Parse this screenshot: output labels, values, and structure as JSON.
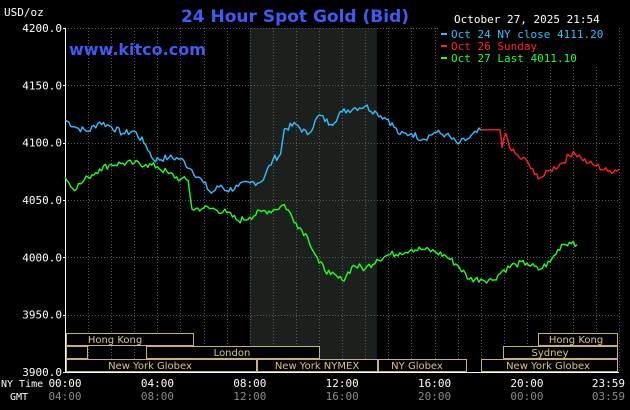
{
  "header": {
    "unit": "USD/oz",
    "title": "24 Hour Spot Gold (Bid)",
    "timestamp": "October 27, 2025 21:54",
    "watermark": "www.kitco.com"
  },
  "legend": [
    {
      "label": "Oct 24 NY close 4111.20",
      "color": "#2fbfff"
    },
    {
      "label": "Oct 26 Sunday",
      "color": "#ff2020"
    },
    {
      "label": "Oct 27 Last 4011.10",
      "color": "#20ff20"
    }
  ],
  "axis": {
    "y_ticks": [
      "4200.0",
      "4150.0",
      "4100.0",
      "4050.0",
      "4000.0",
      "3950.0",
      "3900.0"
    ],
    "x_row1_label": "NY Time",
    "x_row1": [
      "00:00",
      "04:00",
      "08:00",
      "12:00",
      "16:00",
      "20:00",
      "23:59"
    ],
    "x_row2_label": "GMT",
    "x_row2": [
      "04:00",
      "08:00",
      "12:00",
      "16:00",
      "20:00",
      "00:00",
      "03:59"
    ]
  },
  "sessions": {
    "hong_kong_1": "Hong Kong",
    "london": "London",
    "ny_globex_1": "New York Globex",
    "ny_nymex": "New York NYMEX",
    "ny_globex_2": "NY Globex",
    "hong_kong_2": "Hong Kong",
    "sydney": "Sydney",
    "ny_globex_3": "New York Globex"
  },
  "chart_data": {
    "type": "line",
    "title": "24 Hour Spot Gold (Bid)",
    "ylabel": "USD/oz",
    "xlabel": "NY Time",
    "ylim": [
      3900,
      4200
    ],
    "xlim": [
      "00:00",
      "23:59"
    ],
    "grid": true,
    "legend_position": "top-right",
    "series": [
      {
        "name": "Oct 24 NY close 4111.20",
        "color": "#2fbfff",
        "points": [
          [
            "00:00",
            4120
          ],
          [
            "00:30",
            4113
          ],
          [
            "01:00",
            4110
          ],
          [
            "01:30",
            4118
          ],
          [
            "02:00",
            4114
          ],
          [
            "02:30",
            4108
          ],
          [
            "03:00",
            4110
          ],
          [
            "03:30",
            4098
          ],
          [
            "03:50",
            4085
          ],
          [
            "04:30",
            4087
          ],
          [
            "05:00",
            4086
          ],
          [
            "05:30",
            4076
          ],
          [
            "06:00",
            4065
          ],
          [
            "06:20",
            4056
          ],
          [
            "06:45",
            4063
          ],
          [
            "07:00",
            4058
          ],
          [
            "07:30",
            4062
          ],
          [
            "08:00",
            4065
          ],
          [
            "08:30",
            4066
          ],
          [
            "09:00",
            4085
          ],
          [
            "09:20",
            4090
          ],
          [
            "09:30",
            4112
          ],
          [
            "10:00",
            4116
          ],
          [
            "10:30",
            4107
          ],
          [
            "11:00",
            4124
          ],
          [
            "11:30",
            4116
          ],
          [
            "12:00",
            4127
          ],
          [
            "12:30",
            4130
          ],
          [
            "13:00",
            4132
          ],
          [
            "13:30",
            4126
          ],
          [
            "14:00",
            4120
          ],
          [
            "14:30",
            4107
          ],
          [
            "15:00",
            4108
          ],
          [
            "15:30",
            4103
          ],
          [
            "16:00",
            4109
          ],
          [
            "16:30",
            4107
          ],
          [
            "17:00",
            4099
          ],
          [
            "17:30",
            4104
          ],
          [
            "18:00",
            4111
          ]
        ]
      },
      {
        "name": "Oct 26 Sunday",
        "color": "#ff2020",
        "points": [
          [
            "18:00",
            4111.2
          ],
          [
            "18:50",
            4111.2
          ],
          [
            "18:55",
            4096
          ],
          [
            "19:05",
            4108
          ],
          [
            "19:20",
            4093
          ],
          [
            "19:40",
            4087
          ],
          [
            "20:00",
            4084
          ],
          [
            "20:20",
            4072
          ],
          [
            "20:40",
            4070
          ],
          [
            "21:00",
            4076
          ],
          [
            "21:30",
            4082
          ],
          [
            "22:00",
            4092
          ],
          [
            "22:20",
            4087
          ],
          [
            "22:40",
            4082
          ],
          [
            "23:00",
            4080
          ],
          [
            "23:30",
            4075
          ],
          [
            "23:59",
            4077
          ]
        ]
      },
      {
        "name": "Oct 27 Last 4011.10",
        "color": "#20ff20",
        "points": [
          [
            "00:00",
            4070
          ],
          [
            "00:20",
            4060
          ],
          [
            "00:40",
            4064
          ],
          [
            "01:00",
            4070
          ],
          [
            "01:30",
            4077
          ],
          [
            "02:00",
            4081
          ],
          [
            "02:30",
            4082
          ],
          [
            "03:00",
            4082
          ],
          [
            "03:30",
            4081
          ],
          [
            "04:00",
            4079
          ],
          [
            "04:30",
            4073
          ],
          [
            "05:00",
            4068
          ],
          [
            "05:20",
            4067
          ],
          [
            "05:30",
            4042
          ],
          [
            "06:00",
            4043
          ],
          [
            "06:30",
            4042
          ],
          [
            "07:00",
            4039
          ],
          [
            "07:30",
            4032
          ],
          [
            "08:00",
            4035
          ],
          [
            "08:30",
            4040
          ],
          [
            "09:00",
            4041
          ],
          [
            "09:30",
            4046
          ],
          [
            "10:00",
            4030
          ],
          [
            "10:30",
            4018
          ],
          [
            "11:00",
            3995
          ],
          [
            "11:30",
            3985
          ],
          [
            "12:00",
            3980
          ],
          [
            "12:30",
            3993
          ],
          [
            "13:00",
            3990
          ],
          [
            "13:30",
            3998
          ],
          [
            "14:00",
            4002
          ],
          [
            "14:30",
            4004
          ],
          [
            "15:00",
            4007
          ],
          [
            "15:30",
            4007
          ],
          [
            "16:00",
            4005
          ],
          [
            "16:30",
            4001
          ],
          [
            "17:00",
            3993
          ],
          [
            "17:30",
            3981
          ],
          [
            "18:00",
            3981
          ],
          [
            "18:30",
            3980
          ],
          [
            "19:00",
            3989
          ],
          [
            "19:30",
            3994
          ],
          [
            "20:00",
            3995
          ],
          [
            "20:30",
            3989
          ],
          [
            "21:00",
            3996
          ],
          [
            "21:30",
            4011
          ],
          [
            "22:00",
            4014
          ],
          [
            "22:10",
            4011
          ]
        ]
      }
    ]
  },
  "colors": {
    "background": "#000000",
    "grid": "#5a5a5a",
    "title": "#3c5cf5",
    "session_box_stroke": "#c8b078"
  }
}
